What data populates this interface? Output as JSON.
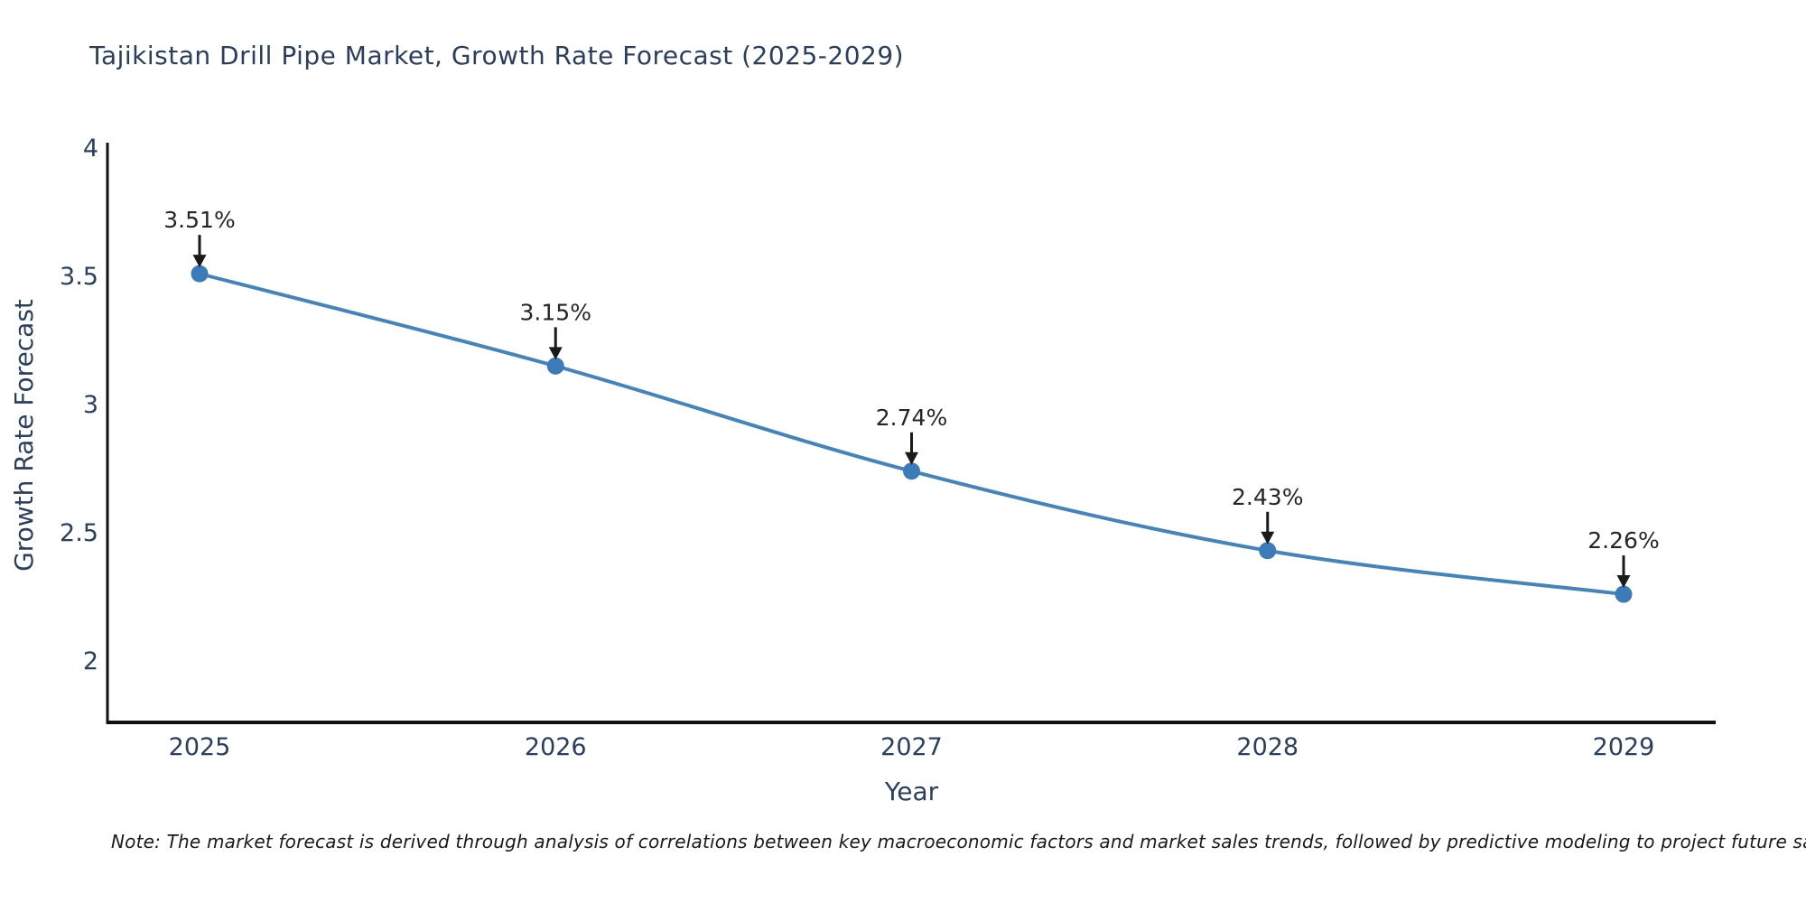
{
  "chart": {
    "title": "Tajikistan Drill Pipe Market, Growth Rate Forecast (2025-2029)",
    "note": "Note: The market forecast is derived through analysis of correlations between key macroeconomic factors and market sales trends, followed by predictive modeling to project future sales"
  },
  "chart_data": {
    "type": "line",
    "title": "Tajikistan Drill Pipe Market, Growth Rate Forecast (2025-2029)",
    "x": [
      2025,
      2026,
      2027,
      2028,
      2029
    ],
    "x_tick_labels": [
      "2025",
      "2026",
      "2027",
      "2028",
      "2029"
    ],
    "series": [
      {
        "name": "Growth Rate Forecast",
        "values": [
          3.51,
          3.15,
          2.74,
          2.43,
          2.26
        ],
        "point_labels": [
          "3.51%",
          "3.15%",
          "2.74%",
          "2.43%",
          "2.26%"
        ]
      }
    ],
    "xlabel": "Year",
    "ylabel": "Growth Rate Forecast",
    "ylim": [
      1.76,
      4.0
    ],
    "yticks": [
      2,
      2.5,
      3,
      3.5,
      4
    ],
    "ytick_labels": [
      "2",
      "2.5",
      "3",
      "3.5",
      "4"
    ],
    "grid": false,
    "legend_position": "none",
    "line_shape": "spline",
    "annotations_have_arrows": true,
    "colors": {
      "line": "#4484bd",
      "marker": "#3c7bba",
      "axis_line": "#111111",
      "tick_text": "#2a3f5f",
      "axis_title_text": "#2a3f5f",
      "title_text": "#2a3f5f",
      "annotation_text": "#262626",
      "annotation_arrow": "#1a1a1a"
    }
  }
}
